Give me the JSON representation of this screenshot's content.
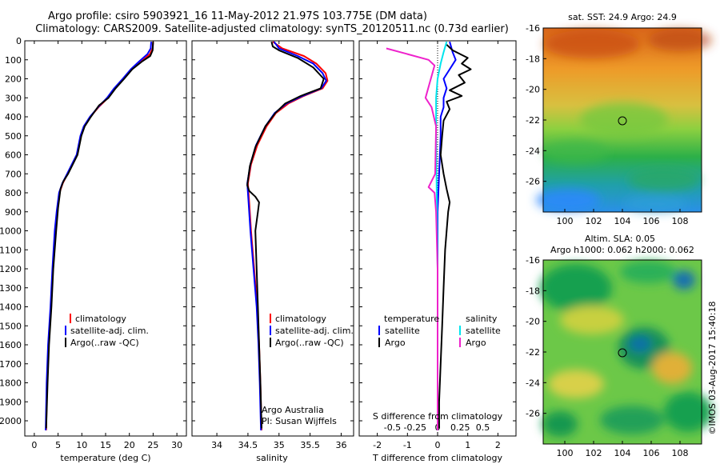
{
  "title_line1": "Argo profile: csiro 5903921_16 11-May-2012 21.97S 103.775E (DM data)",
  "title_line2": "Climatology: CARS2009. Satellite-adjusted climatology: synTS_20120511.nc (0.73d earlier)",
  "colors": {
    "climatology": "#ff0000",
    "satellite": "#0000ff",
    "argo": "#000000",
    "sal_sat": "#00e5ee",
    "sal_argo": "#ee22cc"
  },
  "chart_data": [
    {
      "type": "line",
      "id": "temperature",
      "xlabel": "temperature (deg C)",
      "ylabel": "",
      "xlim": [
        -2,
        32
      ],
      "ylim": [
        2080,
        0
      ],
      "xticks": [
        0,
        5,
        10,
        15,
        20,
        25,
        30
      ],
      "xtick_labels": [
        "0",
        "5",
        "10",
        "15",
        "20",
        "25",
        "30"
      ],
      "yticks": [
        0,
        100,
        200,
        300,
        400,
        500,
        600,
        700,
        800,
        900,
        1000,
        1100,
        1200,
        1300,
        1400,
        1500,
        1600,
        1700,
        1800,
        1900,
        2000
      ],
      "ytick_labels": [
        "0",
        "100",
        "200",
        "300",
        "400",
        "500",
        "600",
        "700",
        "800",
        "900",
        "1000",
        "1100",
        "1200",
        "1300",
        "1400",
        "1500",
        "1600",
        "1700",
        "1800",
        "1900",
        "2000"
      ],
      "legend": [
        "climatology",
        "satellite-adj. clim.",
        "Argo(..raw -QC)"
      ],
      "legend_position": "lower-middle",
      "series": [
        {
          "name": "climatology",
          "color": "#ff0000",
          "points": [
            [
              25.0,
              5
            ],
            [
              24.9,
              40
            ],
            [
              24.3,
              70
            ],
            [
              22.5,
              110
            ],
            [
              20.5,
              150
            ],
            [
              18.8,
              200
            ],
            [
              17.0,
              250
            ],
            [
              15.5,
              300
            ],
            [
              13.5,
              350
            ],
            [
              11.8,
              400
            ],
            [
              10.5,
              450
            ],
            [
              9.8,
              500
            ],
            [
              9.0,
              600
            ],
            [
              8.0,
              650
            ],
            [
              7.0,
              700
            ],
            [
              6.0,
              750
            ],
            [
              5.3,
              800
            ],
            [
              4.8,
              900
            ],
            [
              4.4,
              1000
            ],
            [
              3.9,
              1200
            ],
            [
              3.5,
              1400
            ],
            [
              3.0,
              1600
            ],
            [
              2.7,
              1800
            ],
            [
              2.5,
              2050
            ]
          ]
        },
        {
          "name": "satellite-adj. clim.",
          "color": "#0000ff",
          "points": [
            [
              24.6,
              5
            ],
            [
              24.5,
              40
            ],
            [
              23.8,
              70
            ],
            [
              22.0,
              110
            ],
            [
              20.3,
              150
            ],
            [
              18.6,
              200
            ],
            [
              16.8,
              250
            ],
            [
              15.3,
              300
            ],
            [
              13.4,
              350
            ],
            [
              11.7,
              400
            ],
            [
              10.4,
              450
            ],
            [
              9.7,
              500
            ],
            [
              8.9,
              600
            ],
            [
              7.9,
              650
            ],
            [
              6.9,
              700
            ],
            [
              5.9,
              750
            ],
            [
              5.2,
              800
            ],
            [
              4.7,
              900
            ],
            [
              4.3,
              1000
            ],
            [
              3.8,
              1200
            ],
            [
              3.4,
              1400
            ],
            [
              2.9,
              1600
            ],
            [
              2.6,
              1800
            ],
            [
              2.4,
              2050
            ]
          ]
        },
        {
          "name": "Argo(..raw -QC)",
          "color": "#000000",
          "points": [
            [
              25.0,
              5
            ],
            [
              24.9,
              50
            ],
            [
              24.4,
              80
            ],
            [
              22.6,
              110
            ],
            [
              20.6,
              150
            ],
            [
              18.9,
              200
            ],
            [
              17.1,
              250
            ],
            [
              15.6,
              300
            ],
            [
              13.6,
              340
            ],
            [
              11.9,
              400
            ],
            [
              10.6,
              450
            ],
            [
              9.9,
              500
            ],
            [
              9.1,
              600
            ],
            [
              8.1,
              650
            ],
            [
              7.1,
              700
            ],
            [
              6.1,
              740
            ],
            [
              5.5,
              780
            ],
            [
              5.0,
              880
            ],
            [
              4.6,
              1000
            ],
            [
              4.0,
              1200
            ],
            [
              3.6,
              1400
            ],
            [
              3.1,
              1600
            ],
            [
              2.8,
              1800
            ],
            [
              2.5,
              2040
            ]
          ]
        }
      ]
    },
    {
      "type": "line",
      "id": "salinity",
      "xlabel": "salinity",
      "xlim": [
        33.6,
        36.2
      ],
      "ylim": [
        2080,
        0
      ],
      "xticks": [
        34,
        34.5,
        35,
        35.5,
        36
      ],
      "xtick_labels": [
        "34",
        "34.5",
        "35",
        "35.5",
        "36"
      ],
      "legend": [
        "climatology",
        "satellite-adj. clim.",
        "Argo(..raw -QC)"
      ],
      "legend_position": "lower-middle",
      "annotation": [
        "Argo Australia",
        "PI: Susan Wijffels"
      ],
      "series": [
        {
          "name": "climatology",
          "color": "#ff0000",
          "points": [
            [
              34.9,
              5
            ],
            [
              35.05,
              40
            ],
            [
              35.4,
              80
            ],
            [
              35.6,
              120
            ],
            [
              35.75,
              170
            ],
            [
              35.78,
              210
            ],
            [
              35.7,
              250
            ],
            [
              35.4,
              290
            ],
            [
              35.15,
              330
            ],
            [
              34.95,
              380
            ],
            [
              34.8,
              450
            ],
            [
              34.65,
              550
            ],
            [
              34.55,
              650
            ],
            [
              34.5,
              750
            ],
            [
              34.52,
              850
            ],
            [
              34.55,
              1000
            ],
            [
              34.6,
              1200
            ],
            [
              34.65,
              1400
            ],
            [
              34.68,
              1600
            ],
            [
              34.7,
              1800
            ],
            [
              34.72,
              2050
            ]
          ]
        },
        {
          "name": "satellite-adj. clim.",
          "color": "#0000ff",
          "points": [
            [
              34.92,
              5
            ],
            [
              35.0,
              40
            ],
            [
              35.3,
              80
            ],
            [
              35.55,
              120
            ],
            [
              35.7,
              170
            ],
            [
              35.76,
              210
            ],
            [
              35.68,
              250
            ],
            [
              35.38,
              290
            ],
            [
              35.12,
              330
            ],
            [
              34.93,
              380
            ],
            [
              34.78,
              450
            ],
            [
              34.63,
              550
            ],
            [
              34.54,
              650
            ],
            [
              34.49,
              750
            ],
            [
              34.51,
              850
            ],
            [
              34.54,
              1000
            ],
            [
              34.59,
              1200
            ],
            [
              34.64,
              1400
            ],
            [
              34.67,
              1600
            ],
            [
              34.69,
              1800
            ],
            [
              34.71,
              2050
            ]
          ]
        },
        {
          "name": "Argo(..raw -QC)",
          "color": "#000000",
          "points": [
            [
              34.88,
              5
            ],
            [
              34.9,
              30
            ],
            [
              35.0,
              50
            ],
            [
              35.3,
              90
            ],
            [
              35.55,
              140
            ],
            [
              35.72,
              200
            ],
            [
              35.67,
              250
            ],
            [
              35.35,
              290
            ],
            [
              35.1,
              330
            ],
            [
              34.94,
              380
            ],
            [
              34.78,
              450
            ],
            [
              34.62,
              560
            ],
            [
              34.53,
              660
            ],
            [
              34.49,
              760
            ],
            [
              34.52,
              790
            ],
            [
              34.62,
              820
            ],
            [
              34.68,
              850
            ],
            [
              34.66,
              900
            ],
            [
              34.62,
              1000
            ],
            [
              34.64,
              1200
            ],
            [
              34.66,
              1400
            ],
            [
              34.68,
              1600
            ],
            [
              34.7,
              1800
            ],
            [
              34.72,
              2040
            ]
          ]
        }
      ]
    },
    {
      "type": "line",
      "id": "difference",
      "xlabel": "T difference from climatology",
      "xlabel2": "S difference from climatology",
      "xlim": [
        -2.6,
        2.6
      ],
      "ylim": [
        2080,
        0
      ],
      "xticks": [
        -2,
        -1,
        0,
        1,
        2
      ],
      "xtick_labels": [
        "-2",
        "-1",
        "0",
        "1",
        "2"
      ],
      "sticks": [
        -1.5,
        -0.75,
        0,
        0.75,
        1.5
      ],
      "stick_labels": [
        "-0.5",
        "-0.25",
        "0",
        "0.25",
        "0.5"
      ],
      "legend_titles": [
        "temperature",
        "salinity"
      ],
      "legend": [
        "satellite",
        "Argo",
        "satellite",
        "Argo"
      ],
      "legend_position": "lower-middle",
      "series": [
        {
          "name": "temperature satellite",
          "color": "#0000ff",
          "points": [
            [
              0.4,
              5
            ],
            [
              0.5,
              60
            ],
            [
              0.6,
              100
            ],
            [
              0.4,
              150
            ],
            [
              0.2,
              200
            ],
            [
              0.3,
              250
            ],
            [
              0.2,
              300
            ],
            [
              0.2,
              350
            ],
            [
              0.1,
              400
            ],
            [
              0.1,
              500
            ],
            [
              0.05,
              700
            ],
            [
              0.0,
              900
            ],
            [
              0.0,
              1200
            ],
            [
              0.0,
              2050
            ]
          ]
        },
        {
          "name": "temperature Argo",
          "color": "#000000",
          "points": [
            [
              0.3,
              20
            ],
            [
              0.5,
              50
            ],
            [
              1.0,
              90
            ],
            [
              0.8,
              120
            ],
            [
              1.1,
              150
            ],
            [
              0.7,
              180
            ],
            [
              0.9,
              220
            ],
            [
              0.4,
              260
            ],
            [
              0.8,
              290
            ],
            [
              0.3,
              320
            ],
            [
              0.4,
              360
            ],
            [
              0.2,
              420
            ],
            [
              0.15,
              500
            ],
            [
              0.1,
              600
            ],
            [
              0.2,
              700
            ],
            [
              0.3,
              780
            ],
            [
              0.4,
              850
            ],
            [
              0.35,
              900
            ],
            [
              0.3,
              1000
            ],
            [
              0.25,
              1100
            ],
            [
              0.2,
              1300
            ],
            [
              0.15,
              1500
            ],
            [
              0.1,
              1700
            ],
            [
              0.05,
              1900
            ],
            [
              0.05,
              2040
            ]
          ]
        },
        {
          "name": "salinity satellite",
          "color": "#00e5ee",
          "points": [
            [
              0.3,
              5
            ],
            [
              0.2,
              60
            ],
            [
              0.1,
              120
            ],
            [
              0.0,
              200
            ],
            [
              -0.05,
              300
            ],
            [
              -0.05,
              500
            ],
            [
              -0.03,
              800
            ],
            [
              0.0,
              1200
            ],
            [
              0.0,
              2050
            ]
          ]
        },
        {
          "name": "salinity Argo",
          "color": "#ee22cc",
          "points": [
            [
              -1.7,
              40
            ],
            [
              -1.0,
              70
            ],
            [
              -0.3,
              100
            ],
            [
              -0.1,
              130
            ],
            [
              -0.4,
              300
            ],
            [
              -0.2,
              350
            ],
            [
              -0.05,
              450
            ],
            [
              -0.08,
              700
            ],
            [
              -0.3,
              770
            ],
            [
              -0.1,
              800
            ],
            [
              -0.05,
              900
            ],
            [
              0.0,
              1200
            ],
            [
              0.0,
              2050
            ]
          ]
        }
      ]
    }
  ],
  "map_sst": {
    "title": "sat. SST: 24.9  Argo: 24.9",
    "xticks": [
      "100",
      "102",
      "104",
      "106",
      "108"
    ],
    "yticks": [
      "-16",
      "-18",
      "-20",
      "-22",
      "-24",
      "-26"
    ]
  },
  "map_sla": {
    "title1": "Altim. SLA: 0.05",
    "title2": "Argo h1000: 0.062 h2000: 0.062",
    "xticks": [
      "100",
      "102",
      "104",
      "106",
      "108"
    ],
    "yticks": [
      "-16",
      "-18",
      "-20",
      "-22",
      "-24",
      "-26"
    ]
  },
  "credit": "©IMOS 03-Aug-2017 15:40:18"
}
